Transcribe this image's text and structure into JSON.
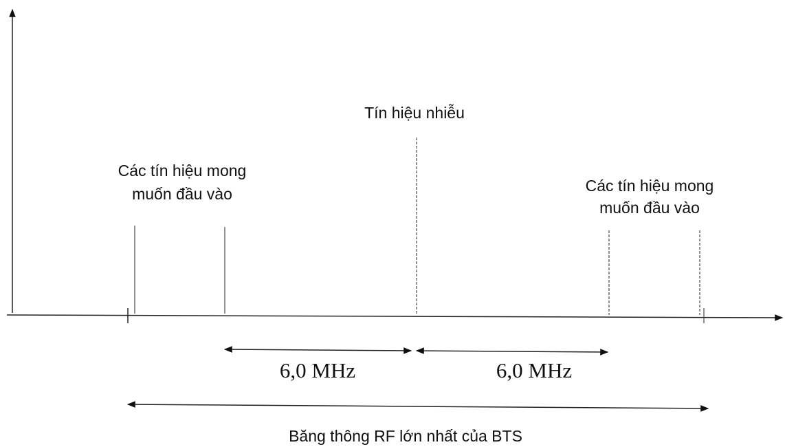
{
  "interference": {
    "label": "Tín hiệu nhiễu"
  },
  "wanted_left": {
    "lines": [
      "Các tín hiệu mong",
      "muốn đầu vào"
    ]
  },
  "wanted_right": {
    "lines": [
      "Các tín hiệu mong",
      "muốn đầu vào"
    ]
  },
  "spacings": [
    "6,0 MHz",
    "6,0 MHz"
  ],
  "bandwidth": {
    "label": "Băng thông RF lớn nhất của BTS"
  }
}
